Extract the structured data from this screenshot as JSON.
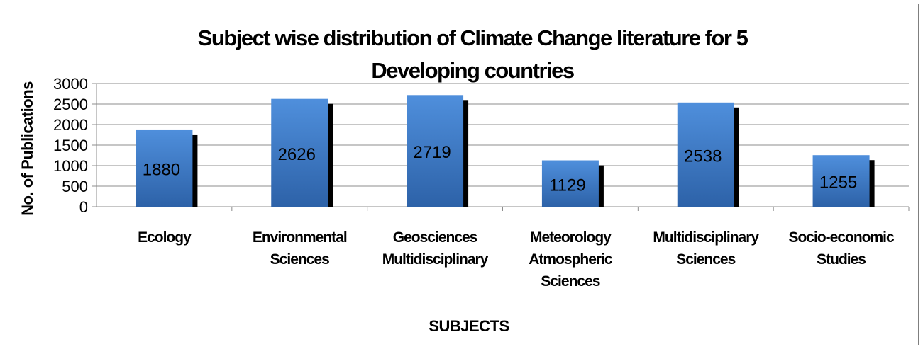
{
  "chart_data": {
    "type": "bar",
    "title_lines": [
      "Subject wise distribution of Climate Change literature for 5",
      "Developing countries"
    ],
    "xlabel": "SUBJECTS",
    "ylabel": "No. of Publications",
    "categories": [
      [
        "Ecology"
      ],
      [
        "Environmental",
        "Sciences"
      ],
      [
        "Geosciences",
        "Multidisciplinary"
      ],
      [
        "Meteorology",
        "Atmospheric",
        "Sciences"
      ],
      [
        "Multidisciplinary",
        "Sciences"
      ],
      [
        "Socio-economic",
        "Studies"
      ]
    ],
    "values": [
      1880,
      2626,
      2719,
      1129,
      2538,
      1255
    ],
    "ylim": [
      0,
      3000
    ],
    "yticks": [
      0,
      500,
      1000,
      1500,
      2000,
      2500,
      3000
    ],
    "grid": true,
    "legend": "none",
    "colors": {
      "bar": "#4a86d0",
      "bar_dark": "#2a5fa6",
      "shadow": "#000000",
      "grid": "#8c8c8c"
    }
  }
}
